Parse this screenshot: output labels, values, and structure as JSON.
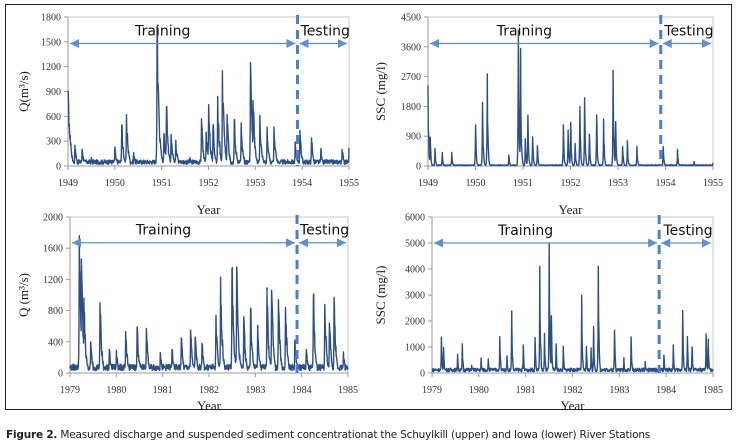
{
  "caption": {
    "label": "Figure 2.",
    "text": "Measured discharge and suspended sediment concentrationat the Schuylkill (upper) and Iowa (lower) River Stations"
  },
  "colors": {
    "series": "#2b4f86",
    "arrow": "#5b8fd6",
    "divider": "#4a7fd0",
    "axis": "#9a9a9a"
  },
  "chart_data": [
    {
      "id": "schuylkill-q",
      "type": "line",
      "title": "",
      "xlabel": "Year",
      "ylabel": "Q(m³/s)",
      "xlim": [
        1949,
        1955
      ],
      "ylim": [
        0,
        1800
      ],
      "xticks": [
        "1949",
        "1950",
        "1951",
        "1952",
        "1953",
        "1954",
        "1955"
      ],
      "yticks": [
        "0",
        "300",
        "600",
        "900",
        "1200",
        "1500",
        "1800"
      ],
      "split_year": 1953.9,
      "phase_labels": {
        "training": "Training",
        "testing": "Testing"
      },
      "arrow_y": 1480,
      "baseline": 60,
      "peaks": [
        [
          1949.0,
          910
        ],
        [
          1949.05,
          370
        ],
        [
          1949.15,
          250
        ],
        [
          1949.3,
          200
        ],
        [
          1949.5,
          100
        ],
        [
          1950.0,
          230
        ],
        [
          1950.15,
          490
        ],
        [
          1950.25,
          620
        ],
        [
          1950.4,
          160
        ],
        [
          1950.9,
          1690
        ],
        [
          1950.93,
          960
        ],
        [
          1951.05,
          390
        ],
        [
          1951.1,
          710
        ],
        [
          1951.2,
          380
        ],
        [
          1951.3,
          310
        ],
        [
          1951.6,
          100
        ],
        [
          1951.85,
          570
        ],
        [
          1951.95,
          410
        ],
        [
          1952.0,
          740
        ],
        [
          1952.1,
          490
        ],
        [
          1952.2,
          840
        ],
        [
          1952.3,
          1150
        ],
        [
          1952.4,
          620
        ],
        [
          1952.55,
          560
        ],
        [
          1952.7,
          520
        ],
        [
          1952.9,
          1250
        ],
        [
          1952.95,
          790
        ],
        [
          1953.1,
          610
        ],
        [
          1953.25,
          470
        ],
        [
          1953.4,
          470
        ],
        [
          1953.85,
          290
        ],
        [
          1953.95,
          430
        ],
        [
          1954.2,
          340
        ],
        [
          1954.4,
          210
        ],
        [
          1954.85,
          200
        ],
        [
          1955.0,
          220
        ]
      ]
    },
    {
      "id": "schuylkill-ssc",
      "type": "line",
      "title": "",
      "xlabel": "Year",
      "ylabel": "SSC (mg/l)",
      "xlim": [
        1949,
        1955
      ],
      "ylim": [
        0,
        4500
      ],
      "xticks": [
        "1949",
        "1950",
        "1951",
        "1952",
        "1953",
        "1954",
        "1955"
      ],
      "yticks": [
        "0",
        "900",
        "1800",
        "2700",
        "3600",
        "4500"
      ],
      "split_year": 1953.9,
      "phase_labels": {
        "training": "Training",
        "testing": "Testing"
      },
      "arrow_y": 3700,
      "baseline": 30,
      "peaks": [
        [
          1949.0,
          2430
        ],
        [
          1949.05,
          870
        ],
        [
          1949.15,
          530
        ],
        [
          1949.3,
          410
        ],
        [
          1949.5,
          410
        ],
        [
          1950.0,
          1240
        ],
        [
          1950.15,
          1920
        ],
        [
          1950.25,
          2780
        ],
        [
          1950.7,
          330
        ],
        [
          1950.9,
          4100
        ],
        [
          1950.95,
          3550
        ],
        [
          1951.05,
          820
        ],
        [
          1951.1,
          1530
        ],
        [
          1951.2,
          880
        ],
        [
          1951.3,
          610
        ],
        [
          1951.85,
          1240
        ],
        [
          1951.95,
          1090
        ],
        [
          1952.0,
          1320
        ],
        [
          1952.1,
          680
        ],
        [
          1952.2,
          1790
        ],
        [
          1952.3,
          2060
        ],
        [
          1952.4,
          960
        ],
        [
          1952.55,
          1540
        ],
        [
          1952.7,
          1420
        ],
        [
          1952.9,
          2890
        ],
        [
          1952.95,
          1340
        ],
        [
          1953.1,
          590
        ],
        [
          1953.2,
          760
        ],
        [
          1953.4,
          590
        ],
        [
          1953.95,
          590
        ],
        [
          1954.25,
          500
        ],
        [
          1954.6,
          140
        ],
        [
          1955.0,
          100
        ]
      ]
    },
    {
      "id": "iowa-q",
      "type": "line",
      "title": "",
      "xlabel": "Year",
      "ylabel": "Q (m³/s)",
      "xlim": [
        1979,
        1985
      ],
      "ylim": [
        0,
        2000
      ],
      "xticks": [
        "1979",
        "1980",
        "1981",
        "1982",
        "1983",
        "1984",
        "1985"
      ],
      "yticks": [
        "0",
        "400",
        "800",
        "1200",
        "1600",
        "2000"
      ],
      "split_year": 1983.9,
      "phase_labels": {
        "training": "Training",
        "testing": "Testing"
      },
      "arrow_y": 1670,
      "baseline": 90,
      "peaks": [
        [
          1979.2,
          1760
        ],
        [
          1979.25,
          1460
        ],
        [
          1979.3,
          960
        ],
        [
          1979.45,
          400
        ],
        [
          1979.65,
          900
        ],
        [
          1979.85,
          300
        ],
        [
          1980.0,
          290
        ],
        [
          1980.2,
          530
        ],
        [
          1980.45,
          590
        ],
        [
          1980.65,
          570
        ],
        [
          1980.95,
          260
        ],
        [
          1981.2,
          300
        ],
        [
          1981.4,
          450
        ],
        [
          1981.6,
          550
        ],
        [
          1981.7,
          460
        ],
        [
          1981.85,
          380
        ],
        [
          1982.15,
          740
        ],
        [
          1982.25,
          1230
        ],
        [
          1982.5,
          1330
        ],
        [
          1982.6,
          1360
        ],
        [
          1982.75,
          720
        ],
        [
          1982.9,
          830
        ],
        [
          1983.05,
          610
        ],
        [
          1983.25,
          1090
        ],
        [
          1983.35,
          1060
        ],
        [
          1983.5,
          940
        ],
        [
          1983.65,
          840
        ],
        [
          1983.85,
          420
        ],
        [
          1984.1,
          300
        ],
        [
          1984.25,
          990
        ],
        [
          1984.5,
          880
        ],
        [
          1984.6,
          640
        ],
        [
          1984.7,
          970
        ],
        [
          1984.9,
          270
        ],
        [
          1985.05,
          430
        ],
        [
          1985.2,
          240
        ]
      ]
    },
    {
      "id": "iowa-ssc",
      "type": "line",
      "title": "",
      "xlabel": "Year",
      "ylabel": "SSC (mg/l)",
      "xlim": [
        1979,
        1985
      ],
      "ylim": [
        0,
        6000
      ],
      "xticks": [
        "1979",
        "1980",
        "1981",
        "1982",
        "1983",
        "1984",
        "1985"
      ],
      "yticks": [
        "0",
        "1000",
        "2000",
        "3000",
        "4000",
        "5000",
        "6000"
      ],
      "split_year": 1983.85,
      "phase_labels": {
        "training": "Training",
        "testing": "Testing"
      },
      "arrow_y": 5000,
      "baseline": 150,
      "peaks": [
        [
          1979.2,
          1380
        ],
        [
          1979.25,
          980
        ],
        [
          1979.55,
          720
        ],
        [
          1979.65,
          1120
        ],
        [
          1979.85,
          300
        ],
        [
          1980.05,
          580
        ],
        [
          1980.2,
          540
        ],
        [
          1980.45,
          1400
        ],
        [
          1980.6,
          660
        ],
        [
          1980.7,
          2380
        ],
        [
          1980.95,
          1080
        ],
        [
          1981.2,
          1360
        ],
        [
          1981.3,
          4100
        ],
        [
          1981.4,
          1520
        ],
        [
          1981.5,
          5000
        ],
        [
          1981.55,
          2200
        ],
        [
          1981.65,
          1120
        ],
        [
          1981.8,
          1030
        ],
        [
          1982.2,
          2980
        ],
        [
          1982.3,
          1020
        ],
        [
          1982.4,
          960
        ],
        [
          1982.45,
          1780
        ],
        [
          1982.55,
          4100
        ],
        [
          1982.9,
          1650
        ],
        [
          1983.1,
          590
        ],
        [
          1983.25,
          1390
        ],
        [
          1983.55,
          440
        ],
        [
          1983.95,
          690
        ],
        [
          1984.15,
          1080
        ],
        [
          1984.35,
          2400
        ],
        [
          1984.45,
          1400
        ],
        [
          1984.55,
          1000
        ],
        [
          1984.85,
          1500
        ],
        [
          1984.9,
          1300
        ]
      ]
    }
  ]
}
